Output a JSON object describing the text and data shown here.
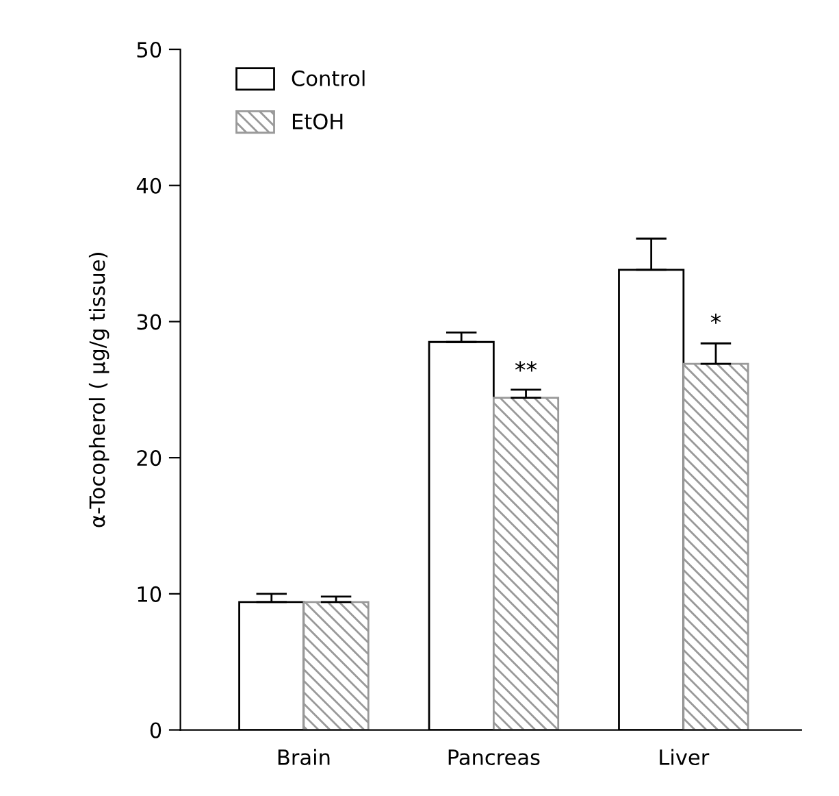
{
  "chart_data": {
    "type": "bar",
    "ylabel": "α-Tocopherol ( μg/g tissue)",
    "categories": [
      "Brain",
      "Pancreas",
      "Liver"
    ],
    "series": [
      {
        "name": "Control",
        "color": "#ffffff",
        "values": [
          9.4,
          28.5,
          33.8
        ],
        "errors": [
          0.6,
          0.7,
          2.3
        ]
      },
      {
        "name": "EtOH",
        "color": "#999999",
        "values": [
          9.4,
          24.4,
          26.9
        ],
        "errors": [
          0.4,
          0.6,
          1.5
        ]
      }
    ],
    "annotations": [
      {
        "text": "**",
        "x": "Pancreas",
        "y": 25.5
      },
      {
        "text": "*",
        "x": "Liver",
        "y": 29.0
      }
    ],
    "ylim": [
      0,
      50
    ],
    "yticks": [
      0,
      10,
      20,
      30,
      40,
      50
    ],
    "grid": false,
    "legend": "top left"
  }
}
